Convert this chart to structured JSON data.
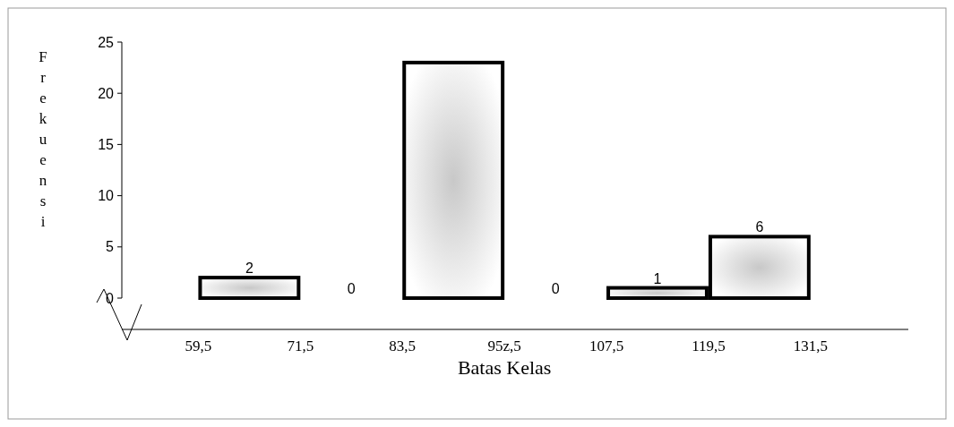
{
  "chart_data": {
    "type": "histogram",
    "xlabel": "Batas Kelas",
    "ylabel": "Frekuensi",
    "bins": [
      59.5,
      71.5,
      83.5,
      95.5,
      107.5,
      119.5,
      131.5
    ],
    "values": [
      2,
      0,
      23,
      0,
      1,
      6
    ],
    "value_labels": [
      "2",
      "0",
      null,
      "0",
      "1",
      "6"
    ],
    "color": "#000000",
    "xlim": [
      50.5,
      143
    ],
    "xticks": [
      {
        "value": 59.5,
        "label": "59,5"
      },
      {
        "value": 71.5,
        "label": "71,5"
      },
      {
        "value": 83.5,
        "label": "83,5"
      },
      {
        "value": 95.5,
        "label": "95z,5"
      },
      {
        "value": 107.5,
        "label": "107,5"
      },
      {
        "value": 119.5,
        "label": "119,5"
      },
      {
        "value": 131.5,
        "label": "131,5"
      }
    ],
    "ylim": [
      0,
      25
    ],
    "yticks": [
      0,
      5,
      10,
      15,
      20,
      25
    ],
    "grid": false
  }
}
